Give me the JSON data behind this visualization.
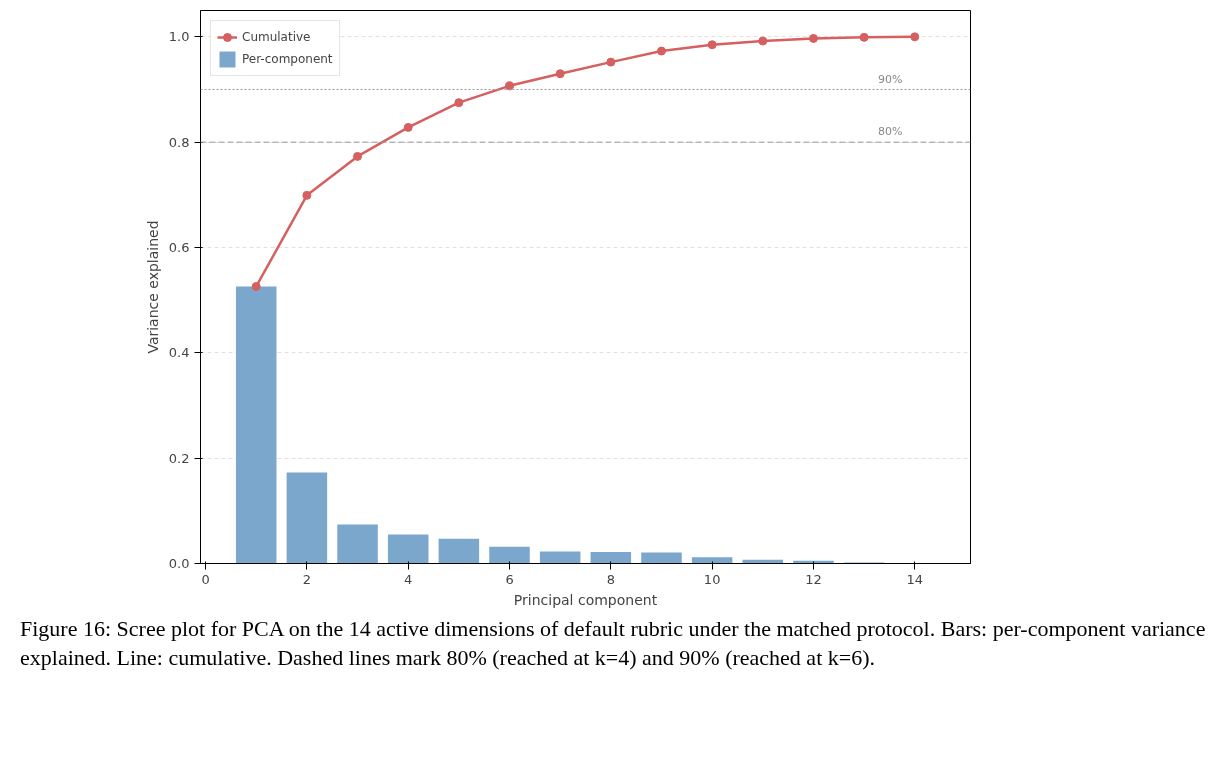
{
  "chart_data": {
    "type": "bar",
    "xlabel": "Principal component",
    "ylabel": "Variance explained",
    "x": [
      1,
      2,
      3,
      4,
      5,
      6,
      7,
      8,
      9,
      10,
      11,
      12,
      13,
      14
    ],
    "series": [
      {
        "name": "Per-component",
        "color": "#7ba7cc",
        "values": [
          0.526,
          0.173,
          0.074,
          0.055,
          0.047,
          0.032,
          0.023,
          0.022,
          0.021,
          0.012,
          0.007,
          0.005,
          0.002,
          null
        ]
      },
      {
        "name": "Cumulative",
        "type": "line",
        "color": "#d65f5f",
        "marker": "circle",
        "values": [
          0.526,
          0.699,
          0.773,
          0.828,
          0.875,
          0.907,
          0.93,
          0.952,
          0.973,
          0.985,
          0.992,
          0.997,
          0.999,
          1.0
        ]
      }
    ],
    "xlim": [
      -0.1,
      15.1
    ],
    "xticks": [
      0,
      2,
      4,
      6,
      8,
      10,
      12,
      14
    ],
    "ylim": [
      0,
      1.05
    ],
    "yticks": [
      {
        "value": 0,
        "label": "0.0"
      },
      0.2,
      0.4,
      0.6,
      0.8,
      {
        "value": 1,
        "label": "1.0"
      }
    ],
    "ref_lines": [
      {
        "axis": "y",
        "value": 0.8,
        "label": "80%",
        "color": "#999999",
        "line_style": "dashed"
      },
      {
        "axis": "y",
        "value": 0.9,
        "label": "90%",
        "color": "#999999",
        "line_style": "dotted"
      }
    ],
    "grid": "y",
    "legend": "top left",
    "annotations": [
      "Figure 16: Scree plot for PCA on the 14 active dimensions of default rubric under the matched protocol. Bars: per-component variance explained. Line: cumulative. Dashed lines mark 80% (reached at k=4) and 90% (reached at k=6)."
    ]
  }
}
